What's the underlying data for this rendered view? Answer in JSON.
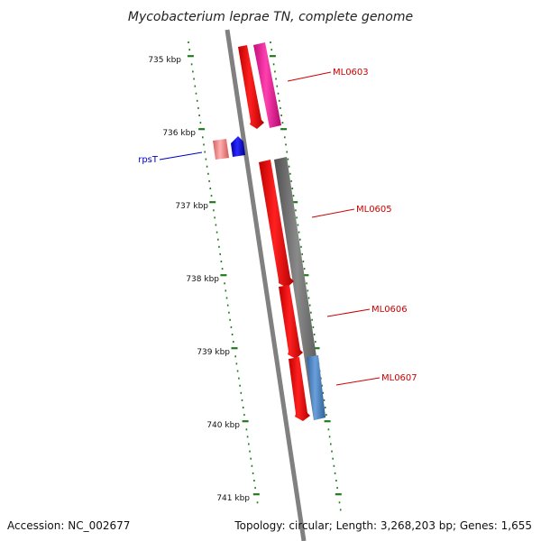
{
  "title": "Mycobacterium leprae TN, complete genome",
  "accession_label": "Accession: NC_002677",
  "stats_label": "Topology: circular; Length: 3,268,203 bp; Genes: 1,655",
  "ticks": [
    "735 kbp",
    "736 kbp",
    "737 kbp",
    "738 kbp",
    "739 kbp",
    "740 kbp",
    "741 kbp"
  ],
  "genes": [
    {
      "label": "ML0603",
      "color": "#cc0000"
    },
    {
      "label": "rpsT",
      "color": "#0000cc"
    },
    {
      "label": "ML0605",
      "color": "#cc0000"
    },
    {
      "label": "ML0606",
      "color": "#cc0000"
    },
    {
      "label": "ML0607",
      "color": "#cc0000"
    }
  ],
  "colors": {
    "backbone": "#808080",
    "tick": "#1f7a1f",
    "feature_red": "#ff0000",
    "feature_magenta": "#ff1fa0",
    "feature_gray": "#6e6e6e",
    "feature_blue": "#0000ff",
    "feature_pink": "#f08080",
    "feature_steel": "#4f86c6"
  }
}
